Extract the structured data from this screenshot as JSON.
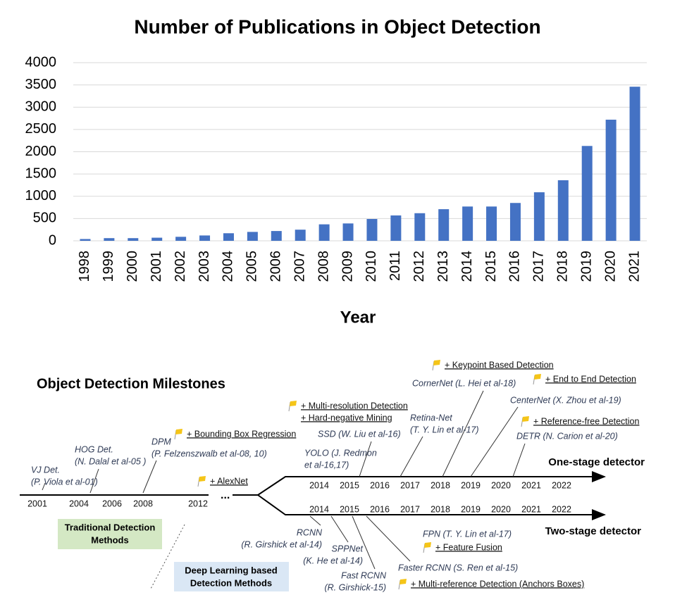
{
  "chart_data": {
    "type": "bar",
    "title": "Number of Publications in Object Detection",
    "x_label": "Year",
    "categories": [
      "1998",
      "1999",
      "2000",
      "2001",
      "2002",
      "2003",
      "2004",
      "2005",
      "2006",
      "2007",
      "2008",
      "2009",
      "2010",
      "2011",
      "2012",
      "2013",
      "2014",
      "2015",
      "2016",
      "2017",
      "2018",
      "2019",
      "2020",
      "2021"
    ],
    "values": [
      40,
      60,
      60,
      70,
      90,
      120,
      170,
      200,
      220,
      250,
      370,
      390,
      490,
      570,
      620,
      710,
      770,
      770,
      850,
      1090,
      1360,
      2130,
      2720,
      3460
    ],
    "color": "#4472c4",
    "ylim": [
      0,
      4000
    ],
    "yticks": [
      0,
      500,
      1000,
      1500,
      2000,
      2500,
      3000,
      3500,
      4000
    ],
    "grid": true
  },
  "milestones": {
    "title": "Object Detection Milestones",
    "lower_years": [
      "2001",
      "2004",
      "2006",
      "2008",
      "2012"
    ],
    "ellipsis": "...",
    "one_stage_years": [
      "2014",
      "2015",
      "2016",
      "2017",
      "2018",
      "2019",
      "2020",
      "2021",
      "2022"
    ],
    "two_stage_years": [
      "2014",
      "2015",
      "2016",
      "2017",
      "2018",
      "2019",
      "2020",
      "2021",
      "2022"
    ],
    "one_stage": "One-stage detector",
    "two_stage": "Two-stage detector",
    "traditional": [
      "Traditional Detection",
      "Methods"
    ],
    "deep_learning": [
      "Deep Learning based",
      "Detection Methods"
    ],
    "detectors": [
      {
        "lines": [
          "VJ Det.",
          "(P. Viola et al-01)"
        ]
      },
      {
        "lines": [
          "HOG Det.",
          "(N. Dalal et al-05 )"
        ]
      },
      {
        "lines": [
          "DPM",
          "(P. Felzenszwalb et al-08, 10)"
        ]
      },
      {
        "lines": [
          "SSD (W. Liu et al-16)"
        ]
      },
      {
        "lines": [
          "YOLO (J. Redmon",
          "et al-16,17)"
        ]
      },
      {
        "lines": [
          "Retina-Net",
          "(T. Y. Lin et al-17)"
        ]
      },
      {
        "lines": [
          "CornerNet (L. Hei et al-18)"
        ]
      },
      {
        "lines": [
          "CenterNet (X. Zhou et al-19)"
        ]
      },
      {
        "lines": [
          "DETR (N. Carion et al-20)"
        ]
      },
      {
        "lines": [
          "RCNN",
          "(R. Girshick et al-14)"
        ]
      },
      {
        "lines": [
          "SPPNet",
          "(K. He et al-14)"
        ]
      },
      {
        "lines": [
          "Fast RCNN",
          "(R. Girshick-15)"
        ]
      },
      {
        "lines": [
          "FPN (T. Y. Lin et al-17)"
        ]
      },
      {
        "lines": [
          "Faster RCNN (S. Ren et al-15)"
        ]
      }
    ],
    "features": [
      {
        "lines": [
          "+ Bounding Box Regression"
        ]
      },
      {
        "lines": [
          "+ AlexNet"
        ]
      },
      {
        "lines": [
          "+ Multi-resolution Detection",
          "+ Hard-negative Mining"
        ]
      },
      {
        "lines": [
          "+ Keypoint Based Detection"
        ]
      },
      {
        "lines": [
          "+ End to End Detection"
        ]
      },
      {
        "lines": [
          "+ Reference-free Detection"
        ]
      },
      {
        "lines": [
          "+ Feature Fusion"
        ]
      },
      {
        "lines": [
          "+ Multi-reference Detection (Anchors Boxes)"
        ]
      }
    ]
  }
}
